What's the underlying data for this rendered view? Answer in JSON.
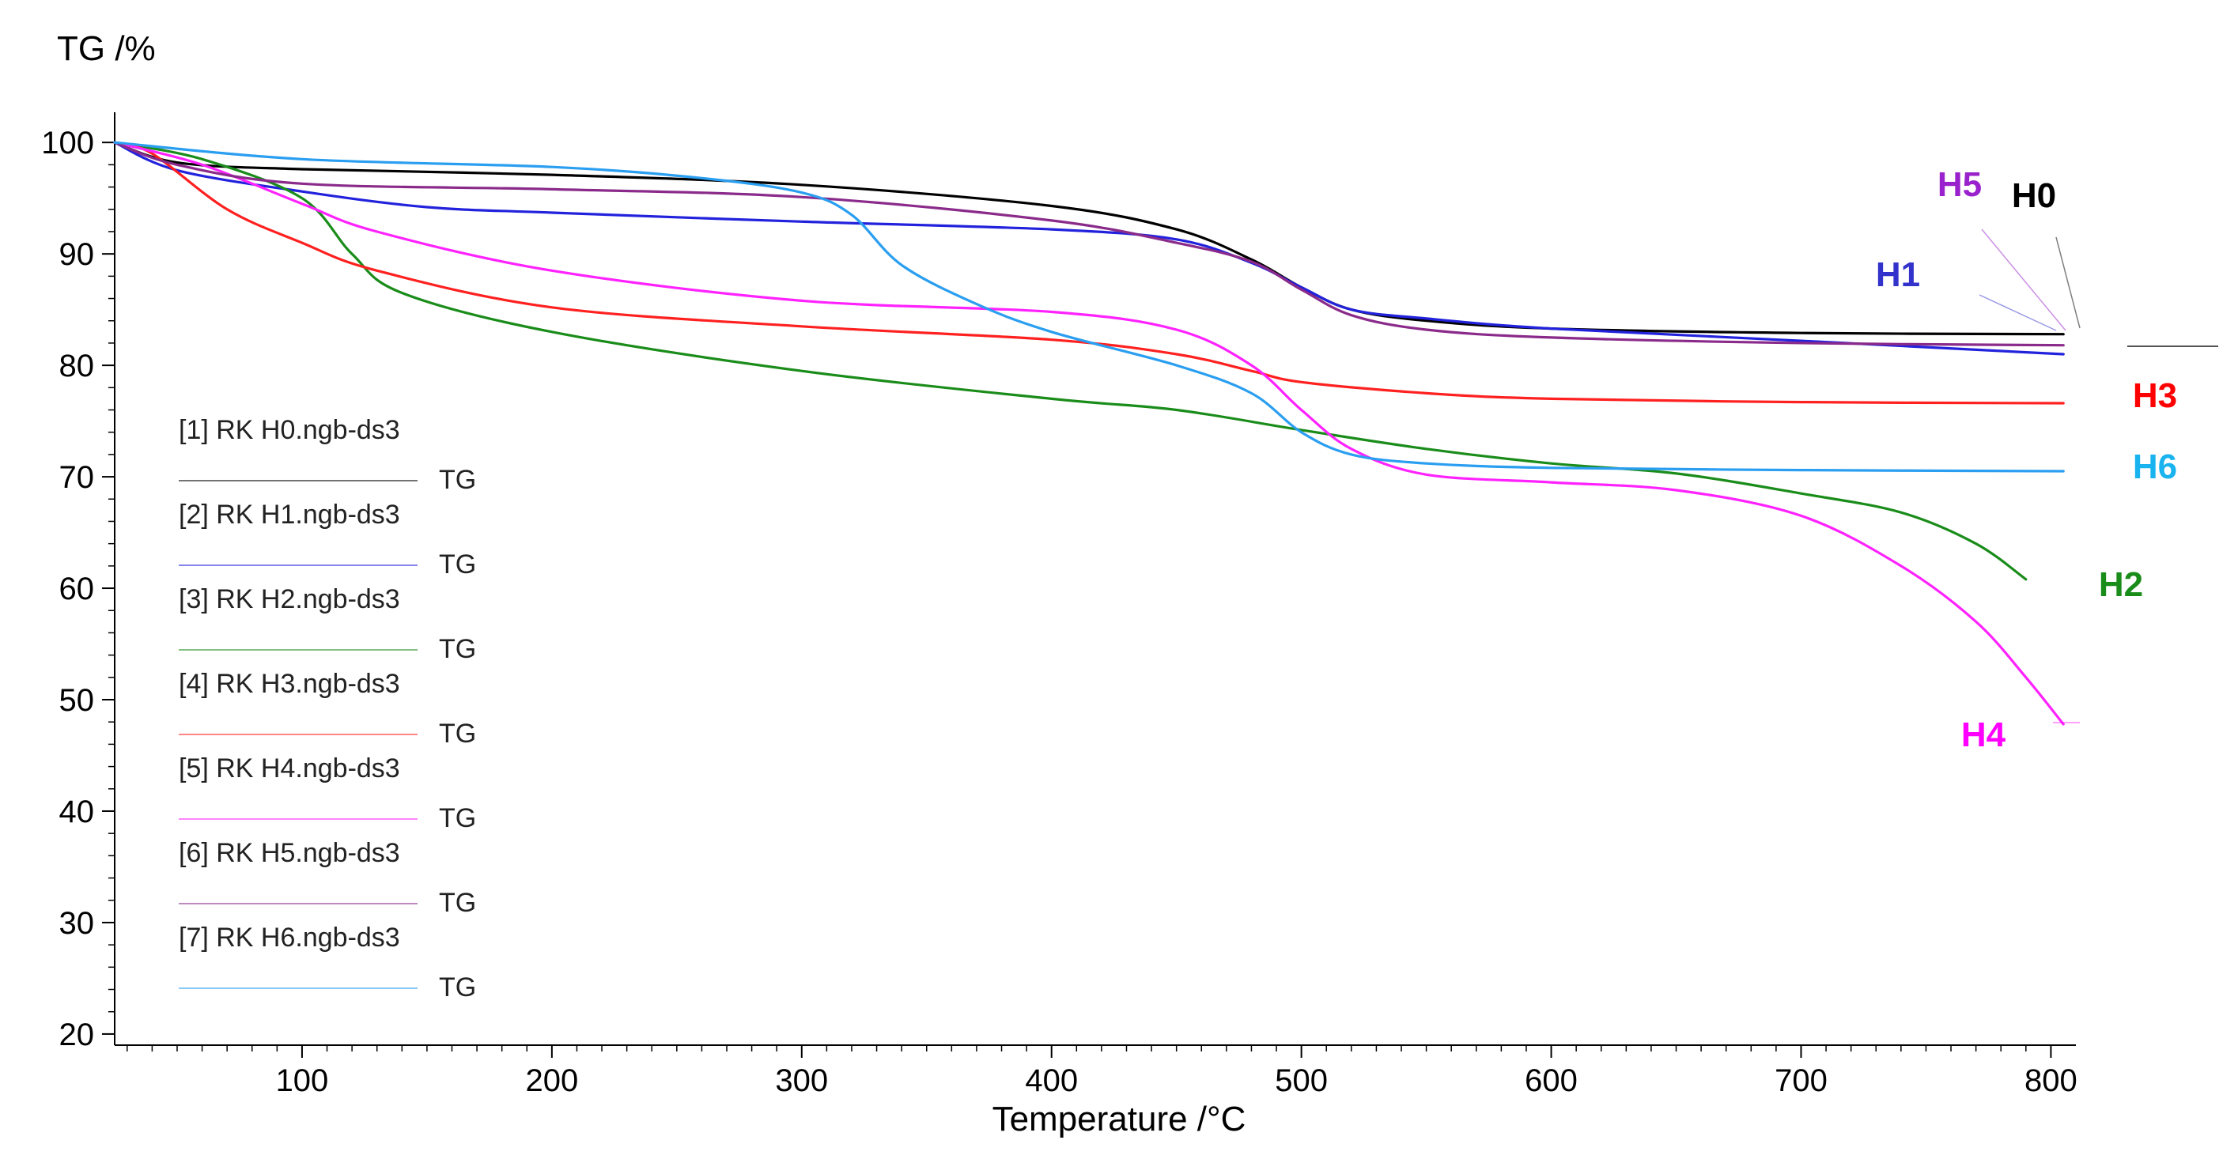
{
  "chart_data": {
    "type": "line",
    "ylabel": "TG /%",
    "xlabel": "Temperature /°C",
    "xlim": [
      25,
      810
    ],
    "ylim": [
      19,
      102
    ],
    "xticks": [
      100,
      200,
      300,
      400,
      500,
      600,
      700,
      800
    ],
    "yticks": [
      20,
      30,
      40,
      50,
      60,
      70,
      80,
      90,
      100
    ],
    "legend_position": "left",
    "series": [
      {
        "id": "H0",
        "legend": "[1] RK H0.ngb-ds3",
        "sublabel": "TG",
        "label": "H0",
        "color": "#000000",
        "label_color": "#000000",
        "points": [
          [
            25,
            100
          ],
          [
            50,
            98.2
          ],
          [
            100,
            97.6
          ],
          [
            200,
            97.1
          ],
          [
            300,
            96.2
          ],
          [
            400,
            94.3
          ],
          [
            450,
            92.2
          ],
          [
            480,
            89.5
          ],
          [
            500,
            87
          ],
          [
            520,
            85
          ],
          [
            550,
            84
          ],
          [
            600,
            83.3
          ],
          [
            700,
            82.9
          ],
          [
            805,
            82.8
          ]
        ]
      },
      {
        "id": "H1",
        "legend": "[2] RK H1.ngb-ds3",
        "sublabel": "TG",
        "label": "H1",
        "color": "#2222dd",
        "label_color": "#3333cc",
        "points": [
          [
            25,
            100
          ],
          [
            50,
            97.5
          ],
          [
            100,
            95.6
          ],
          [
            150,
            94.2
          ],
          [
            200,
            93.7
          ],
          [
            300,
            92.9
          ],
          [
            400,
            92.2
          ],
          [
            450,
            91.3
          ],
          [
            480,
            89.2
          ],
          [
            500,
            87
          ],
          [
            520,
            85
          ],
          [
            550,
            84.2
          ],
          [
            600,
            83.3
          ],
          [
            700,
            82.2
          ],
          [
            805,
            81
          ]
        ]
      },
      {
        "id": "H2",
        "legend": "[3] RK H2.ngb-ds3",
        "sublabel": "TG",
        "label": "H2",
        "color": "#1a8c1a",
        "label_color": "#1a8c1a",
        "points": [
          [
            25,
            100
          ],
          [
            60,
            98.5
          ],
          [
            100,
            95
          ],
          [
            120,
            90
          ],
          [
            140,
            86.5
          ],
          [
            200,
            83
          ],
          [
            300,
            79.5
          ],
          [
            400,
            77
          ],
          [
            450,
            76
          ],
          [
            500,
            74.2
          ],
          [
            550,
            72.5
          ],
          [
            600,
            71.2
          ],
          [
            650,
            70.3
          ],
          [
            700,
            68.5
          ],
          [
            740,
            66.8
          ],
          [
            770,
            64
          ],
          [
            790,
            60.8
          ]
        ]
      },
      {
        "id": "H3",
        "legend": "[4] RK H3.ngb-ds3",
        "sublabel": "TG",
        "label": "H3",
        "color": "#ff2020",
        "label_color": "#ff0000",
        "points": [
          [
            25,
            100
          ],
          [
            40,
            99
          ],
          [
            70,
            94
          ],
          [
            100,
            91
          ],
          [
            130,
            88.5
          ],
          [
            200,
            85.2
          ],
          [
            300,
            83.5
          ],
          [
            400,
            82.3
          ],
          [
            450,
            81
          ],
          [
            480,
            79.5
          ],
          [
            500,
            78.5
          ],
          [
            550,
            77.5
          ],
          [
            600,
            77
          ],
          [
            700,
            76.7
          ],
          [
            805,
            76.6
          ]
        ]
      },
      {
        "id": "H4",
        "legend": "[5] RK H4.ngb-ds3",
        "sublabel": "TG",
        "label": "H4",
        "color": "#ff22ff",
        "label_color": "#ff00ff",
        "points": [
          [
            25,
            100
          ],
          [
            60,
            98
          ],
          [
            100,
            94.5
          ],
          [
            130,
            92
          ],
          [
            200,
            88.5
          ],
          [
            300,
            85.8
          ],
          [
            400,
            84.8
          ],
          [
            450,
            83.2
          ],
          [
            480,
            80
          ],
          [
            500,
            76
          ],
          [
            520,
            72.5
          ],
          [
            550,
            70.2
          ],
          [
            600,
            69.5
          ],
          [
            650,
            68.8
          ],
          [
            700,
            66.5
          ],
          [
            740,
            62
          ],
          [
            770,
            57
          ],
          [
            790,
            52
          ],
          [
            805,
            47.8
          ]
        ]
      },
      {
        "id": "H5",
        "legend": "[6] RK H5.ngb-ds3",
        "sublabel": "TG",
        "label": "H5",
        "color": "#8a2a8a",
        "label_color": "#9922cc",
        "points": [
          [
            25,
            100
          ],
          [
            50,
            98
          ],
          [
            100,
            96.3
          ],
          [
            200,
            95.8
          ],
          [
            300,
            95.1
          ],
          [
            400,
            93
          ],
          [
            450,
            91
          ],
          [
            480,
            89.3
          ],
          [
            500,
            86.8
          ],
          [
            520,
            84.5
          ],
          [
            550,
            83.2
          ],
          [
            600,
            82.5
          ],
          [
            700,
            82
          ],
          [
            805,
            81.8
          ]
        ]
      },
      {
        "id": "H6",
        "legend": "[7] RK H6.ngb-ds3",
        "sublabel": "TG",
        "label": "H6",
        "color": "#2a9ef0",
        "label_color": "#19b4f0",
        "points": [
          [
            25,
            100
          ],
          [
            100,
            98.5
          ],
          [
            200,
            97.8
          ],
          [
            260,
            96.8
          ],
          [
            300,
            95.5
          ],
          [
            320,
            93.5
          ],
          [
            340,
            89
          ],
          [
            370,
            85.5
          ],
          [
            400,
            83
          ],
          [
            450,
            80
          ],
          [
            480,
            77.5
          ],
          [
            500,
            74
          ],
          [
            520,
            72
          ],
          [
            550,
            71.2
          ],
          [
            600,
            70.8
          ],
          [
            700,
            70.6
          ],
          [
            805,
            70.5
          ]
        ]
      }
    ]
  }
}
